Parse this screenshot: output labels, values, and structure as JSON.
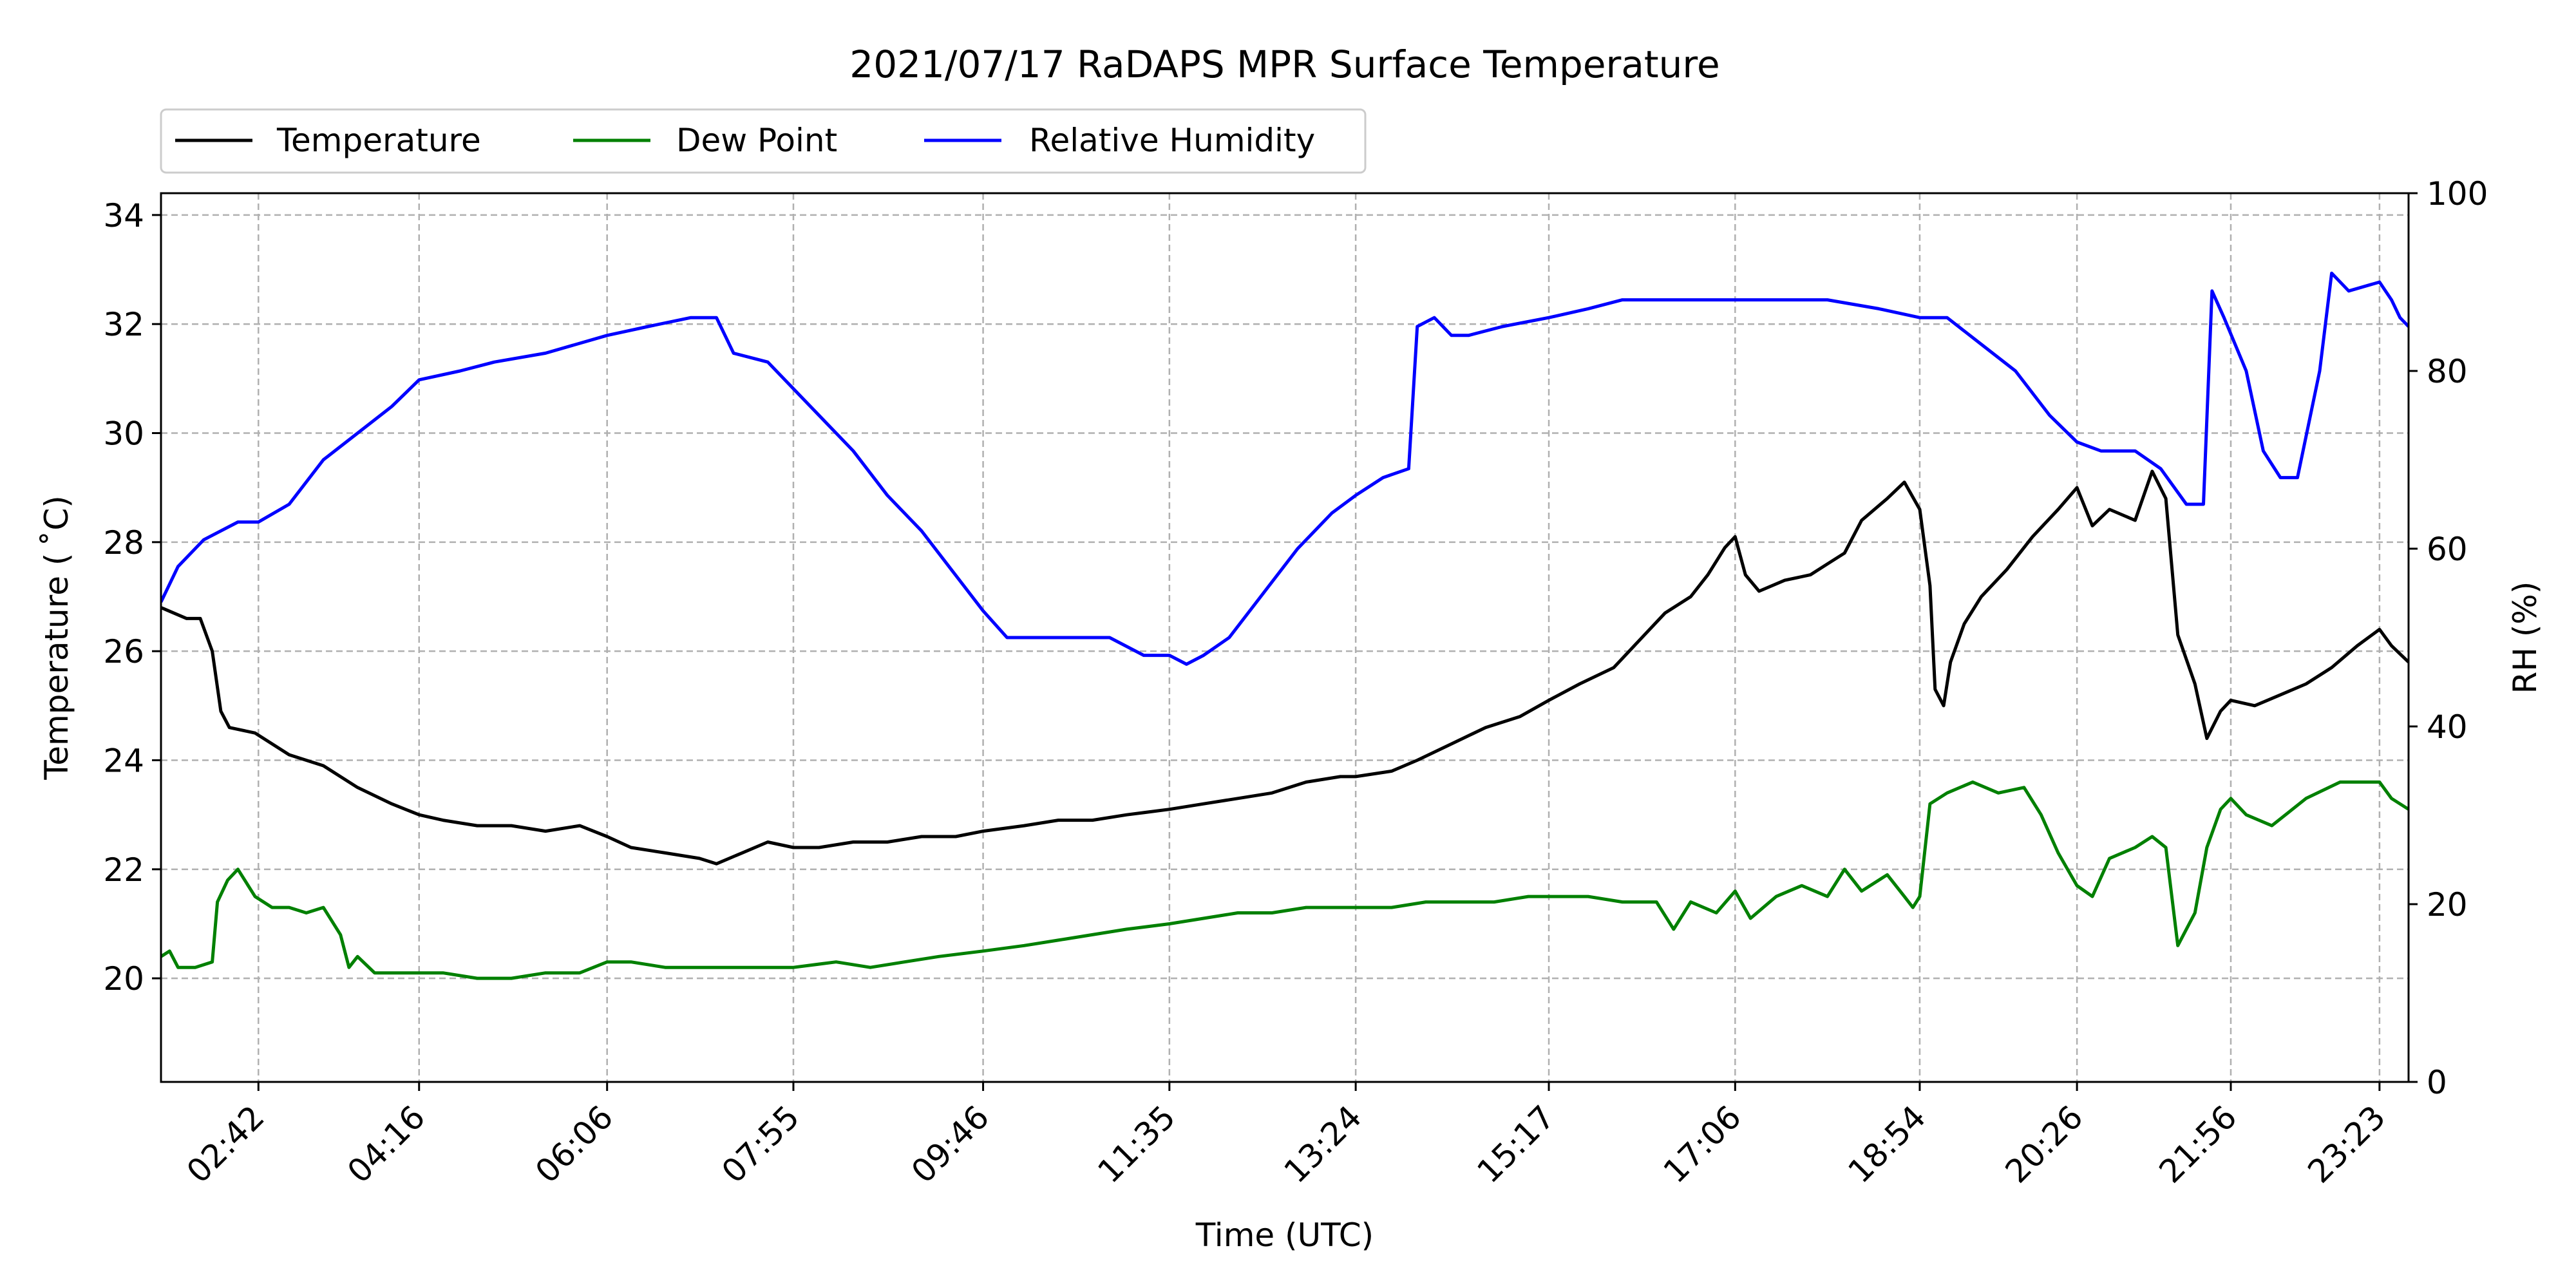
{
  "chart_data": {
    "type": "line",
    "title": "2021/07/17 RaDAPS MPR Surface Temperature",
    "xlabel": "Time (UTC)",
    "ylabel": "Temperature ($^\\circ$C)",
    "ylabel_display": "Temperature ( ˚C)",
    "y2label": "RH (%)",
    "x_ticks": [
      "02:42",
      "04:16",
      "06:06",
      "07:55",
      "09:46",
      "11:35",
      "13:24",
      "15:17",
      "17:06",
      "18:54",
      "20:26",
      "21:56",
      "23:23"
    ],
    "xlim": [
      "01:45",
      "23:40"
    ],
    "ylim": [
      18.1,
      34.4
    ],
    "y_ticks": [
      20,
      22,
      24,
      26,
      28,
      30,
      32,
      34
    ],
    "y2lim": [
      0,
      100
    ],
    "y2_ticks": [
      0,
      20,
      40,
      60,
      80,
      100
    ],
    "grid": true,
    "legend": {
      "position": "top-left, above plot",
      "entries": [
        "Temperature",
        "Dew Point",
        "Relative Humidity"
      ]
    },
    "series": [
      {
        "name": "Temperature",
        "color": "#000000",
        "axis": "left",
        "points": [
          [
            "01:45",
            26.8
          ],
          [
            "02:00",
            26.6
          ],
          [
            "02:08",
            26.6
          ],
          [
            "02:15",
            26.0
          ],
          [
            "02:20",
            24.9
          ],
          [
            "02:25",
            24.6
          ],
          [
            "02:40",
            24.5
          ],
          [
            "03:00",
            24.1
          ],
          [
            "03:20",
            23.9
          ],
          [
            "03:40",
            23.5
          ],
          [
            "04:00",
            23.2
          ],
          [
            "04:16",
            23.0
          ],
          [
            "04:30",
            22.9
          ],
          [
            "04:50",
            22.8
          ],
          [
            "05:10",
            22.8
          ],
          [
            "05:30",
            22.7
          ],
          [
            "05:50",
            22.8
          ],
          [
            "06:06",
            22.6
          ],
          [
            "06:20",
            22.4
          ],
          [
            "06:40",
            22.3
          ],
          [
            "07:00",
            22.2
          ],
          [
            "07:10",
            22.1
          ],
          [
            "07:25",
            22.3
          ],
          [
            "07:40",
            22.5
          ],
          [
            "07:55",
            22.4
          ],
          [
            "08:10",
            22.4
          ],
          [
            "08:30",
            22.5
          ],
          [
            "08:50",
            22.5
          ],
          [
            "09:10",
            22.6
          ],
          [
            "09:30",
            22.6
          ],
          [
            "09:46",
            22.7
          ],
          [
            "10:10",
            22.8
          ],
          [
            "10:30",
            22.9
          ],
          [
            "10:50",
            22.9
          ],
          [
            "11:10",
            23.0
          ],
          [
            "11:35",
            23.1
          ],
          [
            "11:55",
            23.2
          ],
          [
            "12:15",
            23.3
          ],
          [
            "12:35",
            23.4
          ],
          [
            "12:55",
            23.6
          ],
          [
            "13:15",
            23.7
          ],
          [
            "13:24",
            23.7
          ],
          [
            "13:45",
            23.8
          ],
          [
            "14:00",
            24.0
          ],
          [
            "14:20",
            24.3
          ],
          [
            "14:40",
            24.6
          ],
          [
            "15:00",
            24.8
          ],
          [
            "15:17",
            25.1
          ],
          [
            "15:35",
            25.4
          ],
          [
            "15:55",
            25.7
          ],
          [
            "16:10",
            26.2
          ],
          [
            "16:25",
            26.7
          ],
          [
            "16:40",
            27.0
          ],
          [
            "16:50",
            27.4
          ],
          [
            "17:00",
            27.9
          ],
          [
            "17:06",
            28.1
          ],
          [
            "17:12",
            27.4
          ],
          [
            "17:20",
            27.1
          ],
          [
            "17:35",
            27.3
          ],
          [
            "17:50",
            27.4
          ],
          [
            "18:00",
            27.6
          ],
          [
            "18:10",
            27.8
          ],
          [
            "18:20",
            28.4
          ],
          [
            "18:35",
            28.8
          ],
          [
            "18:45",
            29.1
          ],
          [
            "18:54",
            28.6
          ],
          [
            "19:00",
            27.2
          ],
          [
            "19:03",
            25.3
          ],
          [
            "19:08",
            25.0
          ],
          [
            "19:12",
            25.8
          ],
          [
            "19:20",
            26.5
          ],
          [
            "19:30",
            27.0
          ],
          [
            "19:45",
            27.5
          ],
          [
            "20:00",
            28.1
          ],
          [
            "20:15",
            28.6
          ],
          [
            "20:26",
            29.0
          ],
          [
            "20:35",
            28.3
          ],
          [
            "20:45",
            28.6
          ],
          [
            "21:00",
            28.4
          ],
          [
            "21:10",
            29.3
          ],
          [
            "21:18",
            28.8
          ],
          [
            "21:25",
            26.3
          ],
          [
            "21:35",
            25.4
          ],
          [
            "21:42",
            24.4
          ],
          [
            "21:50",
            24.9
          ],
          [
            "21:56",
            25.1
          ],
          [
            "22:10",
            25.0
          ],
          [
            "22:25",
            25.2
          ],
          [
            "22:40",
            25.4
          ],
          [
            "22:55",
            25.7
          ],
          [
            "23:10",
            26.1
          ],
          [
            "23:23",
            26.4
          ],
          [
            "23:30",
            26.1
          ],
          [
            "23:40",
            25.8
          ]
        ]
      },
      {
        "name": "Dew Point",
        "color": "#008000",
        "axis": "left",
        "points": [
          [
            "01:45",
            20.4
          ],
          [
            "01:50",
            20.5
          ],
          [
            "01:55",
            20.2
          ],
          [
            "02:05",
            20.2
          ],
          [
            "02:15",
            20.3
          ],
          [
            "02:18",
            21.4
          ],
          [
            "02:24",
            21.8
          ],
          [
            "02:30",
            22.0
          ],
          [
            "02:40",
            21.5
          ],
          [
            "02:50",
            21.3
          ],
          [
            "03:00",
            21.3
          ],
          [
            "03:10",
            21.2
          ],
          [
            "03:20",
            21.3
          ],
          [
            "03:30",
            20.8
          ],
          [
            "03:35",
            20.2
          ],
          [
            "03:40",
            20.4
          ],
          [
            "03:50",
            20.1
          ],
          [
            "04:16",
            20.1
          ],
          [
            "04:30",
            20.1
          ],
          [
            "04:50",
            20.0
          ],
          [
            "05:10",
            20.0
          ],
          [
            "05:30",
            20.1
          ],
          [
            "05:50",
            20.1
          ],
          [
            "06:06",
            20.3
          ],
          [
            "06:20",
            20.3
          ],
          [
            "06:40",
            20.2
          ],
          [
            "07:00",
            20.2
          ],
          [
            "07:20",
            20.2
          ],
          [
            "07:40",
            20.2
          ],
          [
            "07:55",
            20.2
          ],
          [
            "08:20",
            20.3
          ],
          [
            "08:40",
            20.2
          ],
          [
            "09:00",
            20.3
          ],
          [
            "09:20",
            20.4
          ],
          [
            "09:46",
            20.5
          ],
          [
            "10:10",
            20.6
          ],
          [
            "10:30",
            20.7
          ],
          [
            "10:50",
            20.8
          ],
          [
            "11:10",
            20.9
          ],
          [
            "11:35",
            21.0
          ],
          [
            "11:55",
            21.1
          ],
          [
            "12:15",
            21.2
          ],
          [
            "12:35",
            21.2
          ],
          [
            "12:55",
            21.3
          ],
          [
            "13:24",
            21.3
          ],
          [
            "13:45",
            21.3
          ],
          [
            "14:05",
            21.4
          ],
          [
            "14:25",
            21.4
          ],
          [
            "14:45",
            21.4
          ],
          [
            "15:05",
            21.5
          ],
          [
            "15:17",
            21.5
          ],
          [
            "15:40",
            21.5
          ],
          [
            "16:00",
            21.4
          ],
          [
            "16:20",
            21.4
          ],
          [
            "16:30",
            20.9
          ],
          [
            "16:40",
            21.4
          ],
          [
            "16:55",
            21.2
          ],
          [
            "17:06",
            21.6
          ],
          [
            "17:15",
            21.1
          ],
          [
            "17:30",
            21.5
          ],
          [
            "17:45",
            21.7
          ],
          [
            "18:00",
            21.5
          ],
          [
            "18:10",
            22.0
          ],
          [
            "18:20",
            21.6
          ],
          [
            "18:35",
            21.9
          ],
          [
            "18:45",
            21.5
          ],
          [
            "18:50",
            21.3
          ],
          [
            "18:54",
            21.5
          ],
          [
            "19:00",
            23.2
          ],
          [
            "19:10",
            23.4
          ],
          [
            "19:25",
            23.6
          ],
          [
            "19:40",
            23.4
          ],
          [
            "19:55",
            23.5
          ],
          [
            "20:05",
            23.0
          ],
          [
            "20:15",
            22.3
          ],
          [
            "20:26",
            21.7
          ],
          [
            "20:35",
            21.5
          ],
          [
            "20:45",
            22.2
          ],
          [
            "21:00",
            22.4
          ],
          [
            "21:10",
            22.6
          ],
          [
            "21:18",
            22.4
          ],
          [
            "21:25",
            20.6
          ],
          [
            "21:35",
            21.2
          ],
          [
            "21:42",
            22.4
          ],
          [
            "21:50",
            23.1
          ],
          [
            "21:56",
            23.3
          ],
          [
            "22:05",
            23.0
          ],
          [
            "22:20",
            22.8
          ],
          [
            "22:40",
            23.3
          ],
          [
            "23:00",
            23.6
          ],
          [
            "23:23",
            23.6
          ],
          [
            "23:30",
            23.3
          ],
          [
            "23:40",
            23.1
          ]
        ]
      },
      {
        "name": "Relative Humidity",
        "color": "#0000ff",
        "axis": "right",
        "points": [
          [
            "01:45",
            54
          ],
          [
            "01:55",
            58
          ],
          [
            "02:10",
            61
          ],
          [
            "02:30",
            63
          ],
          [
            "02:42",
            63
          ],
          [
            "03:00",
            65
          ],
          [
            "03:20",
            70
          ],
          [
            "03:40",
            73
          ],
          [
            "04:00",
            76
          ],
          [
            "04:16",
            79
          ],
          [
            "04:40",
            80
          ],
          [
            "05:00",
            81
          ],
          [
            "05:30",
            82
          ],
          [
            "06:06",
            84
          ],
          [
            "06:30",
            85
          ],
          [
            "06:55",
            86
          ],
          [
            "07:10",
            86
          ],
          [
            "07:20",
            82
          ],
          [
            "07:40",
            81
          ],
          [
            "07:55",
            78
          ],
          [
            "08:10",
            75
          ],
          [
            "08:30",
            71
          ],
          [
            "08:50",
            66
          ],
          [
            "09:10",
            62
          ],
          [
            "09:30",
            57
          ],
          [
            "09:46",
            53
          ],
          [
            "10:00",
            50
          ],
          [
            "10:20",
            50
          ],
          [
            "10:40",
            50
          ],
          [
            "11:00",
            50
          ],
          [
            "11:20",
            48
          ],
          [
            "11:35",
            48
          ],
          [
            "11:45",
            47
          ],
          [
            "11:55",
            48
          ],
          [
            "12:10",
            50
          ],
          [
            "12:30",
            55
          ],
          [
            "12:50",
            60
          ],
          [
            "13:10",
            64
          ],
          [
            "13:24",
            66
          ],
          [
            "13:40",
            68
          ],
          [
            "13:55",
            69
          ],
          [
            "14:00",
            85
          ],
          [
            "14:10",
            86
          ],
          [
            "14:20",
            84
          ],
          [
            "14:30",
            84
          ],
          [
            "14:50",
            85
          ],
          [
            "15:17",
            86
          ],
          [
            "15:40",
            87
          ],
          [
            "16:00",
            88
          ],
          [
            "16:30",
            88
          ],
          [
            "17:06",
            88
          ],
          [
            "17:40",
            88
          ],
          [
            "18:00",
            88
          ],
          [
            "18:30",
            87
          ],
          [
            "18:54",
            86
          ],
          [
            "19:10",
            86
          ],
          [
            "19:30",
            83
          ],
          [
            "19:50",
            80
          ],
          [
            "20:10",
            75
          ],
          [
            "20:26",
            72
          ],
          [
            "20:40",
            71
          ],
          [
            "21:00",
            71
          ],
          [
            "21:15",
            69
          ],
          [
            "21:30",
            65
          ],
          [
            "21:40",
            65
          ],
          [
            "21:45",
            89
          ],
          [
            "21:52",
            86
          ],
          [
            "22:05",
            80
          ],
          [
            "22:15",
            71
          ],
          [
            "22:25",
            68
          ],
          [
            "22:35",
            68
          ],
          [
            "22:48",
            80
          ],
          [
            "22:55",
            91
          ],
          [
            "23:05",
            89
          ],
          [
            "23:23",
            90
          ],
          [
            "23:30",
            88
          ],
          [
            "23:35",
            86
          ],
          [
            "23:40",
            85
          ]
        ]
      }
    ]
  }
}
